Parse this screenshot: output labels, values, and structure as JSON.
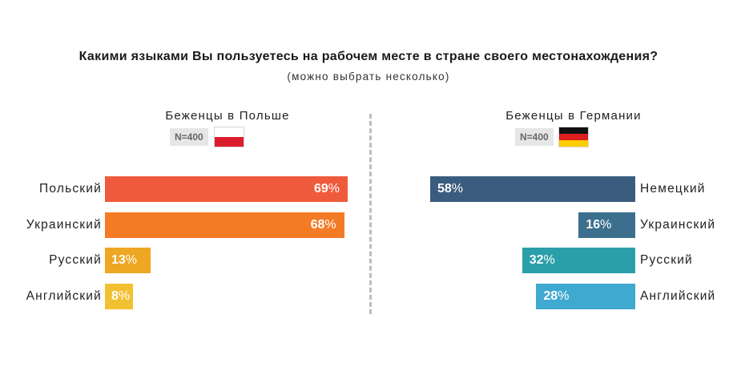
{
  "chart_data": [
    {
      "type": "bar",
      "orientation": "horizontal",
      "title": "Беженцы в Польше",
      "sample": "N=400",
      "categories": [
        "Польский",
        "Украинский",
        "Русский",
        "Английский"
      ],
      "values": [
        69,
        68,
        13,
        8
      ],
      "value_suffix": "%",
      "colors": [
        "#f05a3c",
        "#f47b25",
        "#eea722",
        "#f2c132"
      ],
      "xlim": [
        0,
        69
      ],
      "direction": "left-to-right",
      "flag": "poland-flag-icon"
    },
    {
      "type": "bar",
      "orientation": "horizontal",
      "title": "Беженцы в Германии",
      "sample": "N=400",
      "categories": [
        "Немецкий",
        "Украинский",
        "Русский",
        "Английский"
      ],
      "values": [
        58,
        16,
        32,
        28
      ],
      "value_suffix": "%",
      "colors": [
        "#3a5c7e",
        "#3b6f8d",
        "#2a9faa",
        "#3fa9d0"
      ],
      "xlim": [
        0,
        58
      ],
      "direction": "right-to-left",
      "flag": "germany-flag-icon"
    }
  ],
  "header": {
    "title": "Какими языками Вы пользуетесь на рабочем месте в стране своего местонахождения?",
    "subtitle": "(можно выбрать несколько)"
  }
}
